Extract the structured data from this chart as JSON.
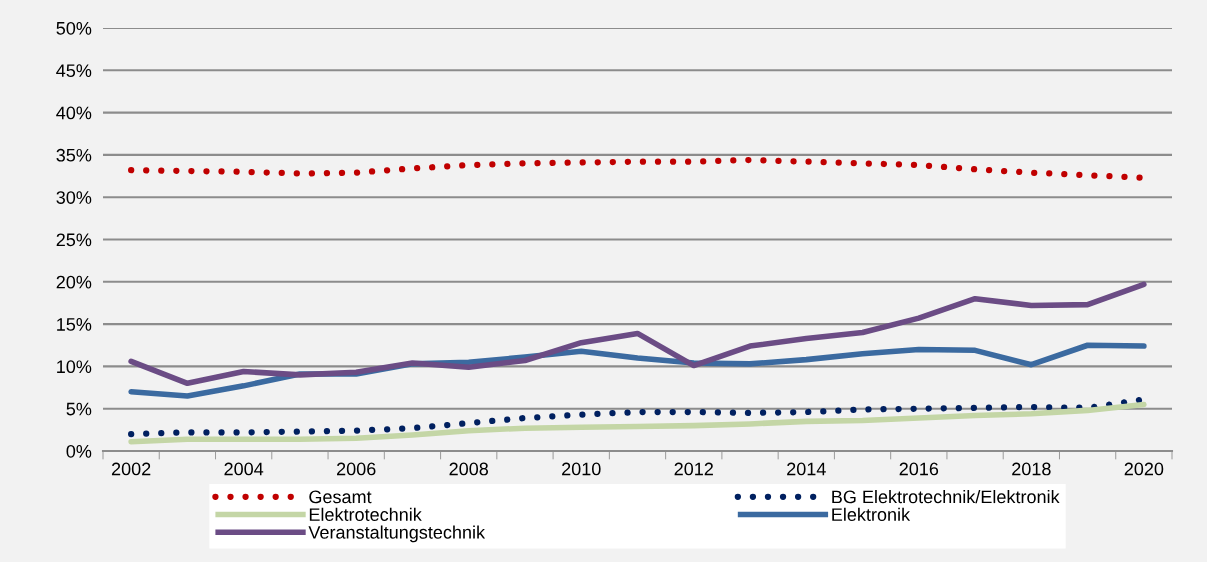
{
  "chart_data": {
    "type": "line",
    "categories": [
      "2002",
      null,
      "2004",
      null,
      "2006",
      null,
      "2008",
      null,
      "2010",
      null,
      "2012",
      null,
      "2014",
      null,
      "2016",
      null,
      "2018",
      null,
      "2020"
    ],
    "ylim": [
      0,
      50
    ],
    "yticks": [
      {
        "value": 0,
        "label": "0%"
      },
      {
        "value": 5,
        "label": "5%"
      },
      {
        "value": 10,
        "label": "10%"
      },
      {
        "value": 15,
        "label": "15%"
      },
      {
        "value": 20,
        "label": "20%"
      },
      {
        "value": 25,
        "label": "25%"
      },
      {
        "value": 30,
        "label": "30%"
      },
      {
        "value": 35,
        "label": "35%"
      },
      {
        "value": 40,
        "label": "40%"
      },
      {
        "value": 45,
        "label": "45%"
      },
      {
        "value": 50,
        "label": "50%"
      }
    ],
    "grid": "y",
    "legend": "bottom",
    "series": [
      {
        "name": "Gesamt",
        "color": "#c00000",
        "line_style": "dotted",
        "values": [
          33.2,
          33.1,
          33.0,
          32.8,
          32.9,
          33.4,
          33.8,
          34.0,
          34.1,
          34.2,
          34.2,
          34.4,
          34.2,
          34.0,
          33.8,
          33.3,
          32.9,
          32.6,
          32.3
        ]
      },
      {
        "name": "BG Elektrotechnik/Elektronik",
        "color": "#002060",
        "line_style": "dotted",
        "values": [
          2.0,
          2.2,
          2.2,
          2.3,
          2.4,
          2.7,
          3.3,
          3.9,
          4.3,
          4.6,
          4.6,
          4.5,
          4.6,
          4.9,
          5.0,
          5.1,
          5.2,
          5.1,
          6.1
        ]
      },
      {
        "name": "Elektrotechnik",
        "color": "#c4d6a6",
        "line_style": "solid",
        "values": [
          1.1,
          1.4,
          1.4,
          1.4,
          1.5,
          1.9,
          2.4,
          2.7,
          2.8,
          2.9,
          3.0,
          3.2,
          3.5,
          3.6,
          3.9,
          4.2,
          4.4,
          4.8,
          5.5
        ]
      },
      {
        "name": "Elektronik",
        "color": "#3b6aa0",
        "line_style": "solid",
        "values": [
          7.0,
          6.5,
          7.7,
          9.1,
          9.1,
          10.3,
          10.5,
          11.1,
          11.8,
          11.0,
          10.4,
          10.3,
          10.8,
          11.5,
          12.0,
          11.9,
          10.2,
          12.5,
          12.4
        ]
      },
      {
        "name": "Veranstaltungstechnik",
        "color": "#6b4c85",
        "line_style": "solid",
        "values": [
          10.6,
          8.0,
          9.4,
          9.0,
          9.3,
          10.4,
          9.9,
          10.7,
          12.8,
          13.9,
          10.1,
          12.4,
          13.3,
          14.0,
          15.7,
          18.0,
          17.2,
          17.3,
          19.7
        ]
      }
    ]
  }
}
